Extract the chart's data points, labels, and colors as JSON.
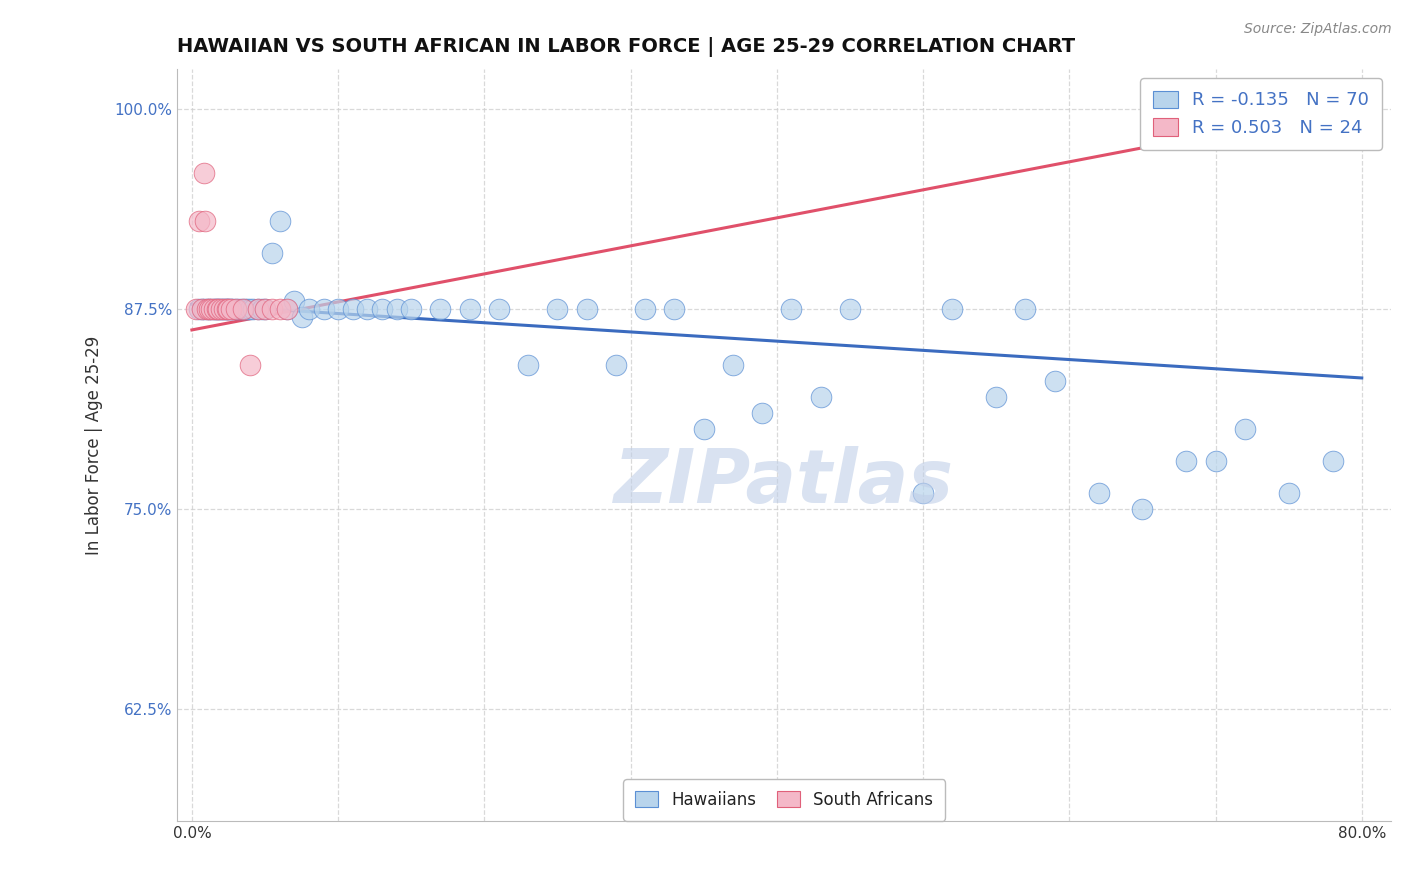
{
  "title": "HAWAIIAN VS SOUTH AFRICAN IN LABOR FORCE | AGE 25-29 CORRELATION CHART",
  "source_text": "Source: ZipAtlas.com",
  "ylabel": "In Labor Force | Age 25-29",
  "xlim": [
    -0.01,
    0.82
  ],
  "ylim": [
    0.555,
    1.025
  ],
  "xticks": [
    0.0,
    0.1,
    0.2,
    0.3,
    0.4,
    0.5,
    0.6,
    0.7,
    0.8
  ],
  "xticklabels": [
    "0.0%",
    "",
    "",
    "",
    "",
    "",
    "",
    "",
    "80.0%"
  ],
  "yticks": [
    0.625,
    0.75,
    0.875,
    1.0
  ],
  "yticklabels": [
    "62.5%",
    "75.0%",
    "87.5%",
    "100.0%"
  ],
  "blue_R": -0.135,
  "blue_N": 70,
  "pink_R": 0.503,
  "pink_N": 24,
  "blue_color": "#b8d4ec",
  "pink_color": "#f4b8c8",
  "blue_edge_color": "#5b8fd4",
  "pink_edge_color": "#e0607a",
  "blue_line_color": "#3b6bbf",
  "pink_line_color": "#e0506a",
  "tick_color": "#4472c4",
  "watermark_color": "#c0cfe8",
  "blue_x": [
    0.005,
    0.007,
    0.008,
    0.01,
    0.012,
    0.013,
    0.015,
    0.016,
    0.017,
    0.018,
    0.019,
    0.02,
    0.021,
    0.022,
    0.023,
    0.024,
    0.025,
    0.026,
    0.027,
    0.028,
    0.03,
    0.032,
    0.034,
    0.036,
    0.038,
    0.04,
    0.042,
    0.045,
    0.048,
    0.05,
    0.055,
    0.06,
    0.065,
    0.07,
    0.075,
    0.08,
    0.09,
    0.1,
    0.11,
    0.12,
    0.13,
    0.14,
    0.15,
    0.17,
    0.19,
    0.21,
    0.23,
    0.25,
    0.27,
    0.29,
    0.31,
    0.33,
    0.35,
    0.37,
    0.39,
    0.41,
    0.43,
    0.45,
    0.5,
    0.52,
    0.55,
    0.57,
    0.59,
    0.62,
    0.65,
    0.68,
    0.7,
    0.72,
    0.75,
    0.78
  ],
  "blue_y": [
    0.875,
    0.875,
    0.875,
    0.875,
    0.875,
    0.875,
    0.875,
    0.875,
    0.875,
    0.875,
    0.875,
    0.875,
    0.875,
    0.875,
    0.875,
    0.875,
    0.875,
    0.875,
    0.875,
    0.875,
    0.875,
    0.875,
    0.875,
    0.875,
    0.875,
    0.875,
    0.875,
    0.875,
    0.875,
    0.875,
    0.91,
    0.93,
    0.875,
    0.88,
    0.87,
    0.875,
    0.875,
    0.875,
    0.875,
    0.875,
    0.875,
    0.875,
    0.875,
    0.875,
    0.875,
    0.875,
    0.84,
    0.875,
    0.875,
    0.84,
    0.875,
    0.875,
    0.8,
    0.84,
    0.81,
    0.875,
    0.82,
    0.875,
    0.76,
    0.875,
    0.82,
    0.875,
    0.83,
    0.76,
    0.75,
    0.78,
    0.78,
    0.8,
    0.76,
    0.78
  ],
  "pink_x": [
    0.003,
    0.005,
    0.007,
    0.008,
    0.009,
    0.01,
    0.012,
    0.013,
    0.015,
    0.017,
    0.018,
    0.02,
    0.022,
    0.024,
    0.025,
    0.027,
    0.03,
    0.035,
    0.04,
    0.045,
    0.05,
    0.055,
    0.06,
    0.065
  ],
  "pink_y": [
    0.875,
    0.93,
    0.875,
    0.96,
    0.93,
    0.875,
    0.875,
    0.875,
    0.875,
    0.875,
    0.875,
    0.875,
    0.875,
    0.875,
    0.875,
    0.875,
    0.875,
    0.875,
    0.84,
    0.875,
    0.875,
    0.875,
    0.875,
    0.875
  ]
}
